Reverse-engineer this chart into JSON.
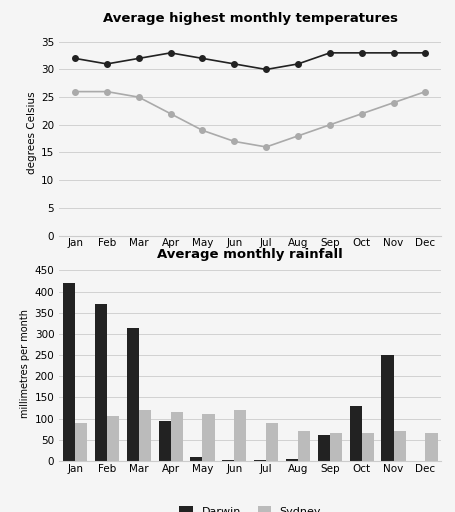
{
  "months": [
    "Jan",
    "Feb",
    "Mar",
    "Apr",
    "May",
    "Jun",
    "Jul",
    "Aug",
    "Sep",
    "Oct",
    "Nov",
    "Dec"
  ],
  "temp_title": "Average highest monthly temperatures",
  "temp_ylabel": "degrees Celsius",
  "temp_darwin": [
    32,
    31,
    32,
    33,
    32,
    31,
    30,
    31,
    33,
    33,
    33,
    33
  ],
  "temp_sydney": [
    26,
    26,
    25,
    22,
    19,
    17,
    16,
    18,
    20,
    22,
    24,
    26
  ],
  "temp_ylim": [
    0,
    37
  ],
  "temp_yticks": [
    0,
    5,
    10,
    15,
    20,
    25,
    30,
    35
  ],
  "temp_darwin_color": "#222222",
  "temp_sydney_color": "#aaaaaa",
  "rain_title": "Average monthly rainfall",
  "rain_ylabel": "millimetres per month",
  "rain_darwin": [
    420,
    370,
    315,
    95,
    10,
    2,
    2,
    5,
    60,
    130,
    250,
    0
  ],
  "rain_sydney": [
    90,
    105,
    120,
    115,
    110,
    120,
    90,
    70,
    65,
    65,
    70,
    65
  ],
  "rain_ylim": [
    0,
    460
  ],
  "rain_yticks": [
    0,
    50,
    100,
    150,
    200,
    250,
    300,
    350,
    400,
    450
  ],
  "rain_darwin_color": "#222222",
  "rain_sydney_color": "#bbbbbb",
  "background_color": "#f5f5f5"
}
